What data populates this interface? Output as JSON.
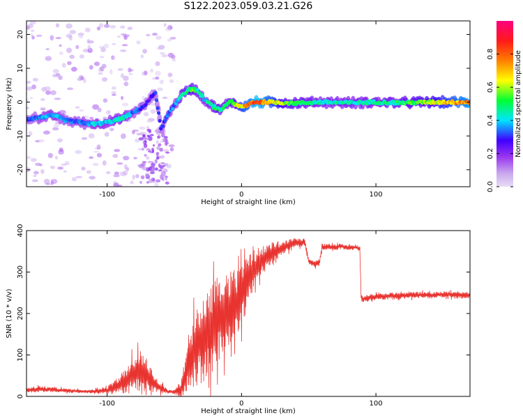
{
  "title": "S122.2023.059.03.21.G26",
  "chart_data": [
    {
      "type": "heatmap",
      "xlabel": "Height of straight line (km)",
      "ylabel": "Frequency (Hz)",
      "xlim": [
        -160,
        170
      ],
      "ylim": [
        -25,
        24
      ],
      "x_ticks": [
        -100,
        0,
        100
      ],
      "y_ticks": [
        -20,
        -10,
        0,
        10,
        20
      ],
      "colorbar": {
        "label": "Normalized spectral amplitude",
        "range": [
          0.0,
          1.0
        ],
        "ticks": [
          0.0,
          0.2,
          0.4,
          0.6,
          0.8
        ],
        "colors": [
          "#e8ddf6",
          "#c9a8ee",
          "#9a36ee",
          "#4000ff",
          "#00e5ff",
          "#00ff33",
          "#ffff00",
          "#ff7f00",
          "#ff1a1a",
          "#ff0080"
        ]
      },
      "ridge": {
        "x": [
          -160,
          -150,
          -140,
          -130,
          -120,
          -110,
          -100,
          -90,
          -80,
          -72,
          -68,
          -64,
          -60,
          -55,
          -50,
          -45,
          -40,
          -36,
          -32,
          -28,
          -24,
          -20,
          -16,
          -12,
          -8,
          -4,
          0,
          4,
          8,
          12,
          20,
          40,
          60,
          80,
          100,
          120,
          140,
          160,
          170
        ],
        "y": [
          -5,
          -4.5,
          -4,
          -5.5,
          -6,
          -6.5,
          -6,
          -5,
          -3,
          -1,
          1,
          3,
          -8,
          -4,
          -1,
          2,
          3.5,
          4,
          3,
          1,
          -0.5,
          -1.5,
          -2.5,
          -1,
          0.5,
          -1,
          -1.5,
          -1,
          0,
          0,
          0,
          -0.3,
          0,
          -0.2,
          0,
          -0.2,
          0,
          0,
          0
        ],
        "amplitude": [
          0.3,
          0.35,
          0.4,
          0.35,
          0.35,
          0.4,
          0.4,
          0.45,
          0.35,
          0.3,
          0.25,
          0.3,
          0.3,
          0.35,
          0.35,
          0.45,
          0.5,
          0.55,
          0.45,
          0.4,
          0.45,
          0.5,
          0.5,
          0.45,
          0.5,
          0.6,
          0.7,
          0.75,
          0.8,
          0.85,
          0.75,
          0.5,
          0.45,
          0.45,
          0.45,
          0.5,
          0.6,
          0.75,
          0.8
        ]
      }
    },
    {
      "type": "line",
      "xlabel": "Height of straight line (km)",
      "ylabel": "SNR (10 * v/v)",
      "xlim": [
        -160,
        170
      ],
      "ylim": [
        0,
        400
      ],
      "x_ticks": [
        -100,
        0,
        100
      ],
      "y_ticks": [
        0,
        100,
        200,
        300,
        400
      ],
      "color": "#e8332f",
      "series": [
        {
          "x": [
            -160,
            -150,
            -140,
            -130,
            -120,
            -110,
            -100,
            -95,
            -90,
            -85,
            -80,
            -75,
            -70,
            -65,
            -60,
            -55,
            -50,
            -45,
            -40,
            -35,
            -30,
            -25,
            -20,
            -15,
            -10,
            -5,
            0,
            5,
            10,
            15,
            20,
            25,
            30,
            35,
            40,
            45,
            47,
            50,
            55,
            58,
            60,
            65,
            70,
            75,
            80,
            85,
            88,
            89,
            90,
            95,
            100,
            110,
            120,
            130,
            140,
            150,
            160,
            170
          ],
          "y": [
            15,
            18,
            16,
            14,
            12,
            12,
            15,
            22,
            30,
            40,
            55,
            60,
            50,
            30,
            20,
            12,
            10,
            20,
            70,
            110,
            140,
            150,
            180,
            195,
            210,
            220,
            240,
            280,
            310,
            330,
            340,
            350,
            355,
            365,
            370,
            370,
            375,
            325,
            320,
            325,
            360,
            362,
            360,
            362,
            358,
            360,
            355,
            240,
            235,
            238,
            240,
            242,
            243,
            245,
            244,
            246,
            245,
            244
          ],
          "spread": [
            6,
            8,
            6,
            5,
            4,
            5,
            8,
            15,
            25,
            35,
            45,
            50,
            40,
            25,
            12,
            6,
            5,
            20,
            60,
            90,
            110,
            110,
            110,
            100,
            95,
            85,
            75,
            60,
            45,
            35,
            30,
            25,
            20,
            15,
            12,
            10,
            10,
            8,
            8,
            8,
            8,
            7,
            7,
            7,
            7,
            7,
            7,
            8,
            8,
            8,
            8,
            8,
            8,
            8,
            8,
            8,
            8,
            8
          ]
        }
      ]
    }
  ]
}
